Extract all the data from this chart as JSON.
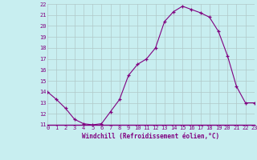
{
  "x": [
    0,
    1,
    2,
    3,
    4,
    5,
    6,
    7,
    8,
    9,
    10,
    11,
    12,
    13,
    14,
    15,
    16,
    17,
    18,
    19,
    20,
    21,
    22,
    23
  ],
  "y": [
    14,
    13.3,
    12.5,
    11.5,
    11.1,
    11.0,
    11.1,
    12.2,
    13.3,
    15.5,
    16.5,
    17.0,
    18.0,
    20.4,
    21.3,
    21.8,
    21.5,
    21.2,
    20.8,
    19.5,
    17.3,
    14.5,
    13.0,
    13.0
  ],
  "line_color": "#800080",
  "marker": "+",
  "bg_color": "#c8eef0",
  "grid_color": "#b0c8c8",
  "xlabel": "Windchill (Refroidissement éolien,°C)",
  "tick_color": "#800080",
  "label_color": "#800080",
  "ylim": [
    11,
    22
  ],
  "xlim": [
    0,
    23
  ],
  "yticks": [
    11,
    12,
    13,
    14,
    15,
    16,
    17,
    18,
    19,
    20,
    21,
    22
  ],
  "xticks": [
    0,
    1,
    2,
    3,
    4,
    5,
    6,
    7,
    8,
    9,
    10,
    11,
    12,
    13,
    14,
    15,
    16,
    17,
    18,
    19,
    20,
    21,
    22,
    23
  ]
}
